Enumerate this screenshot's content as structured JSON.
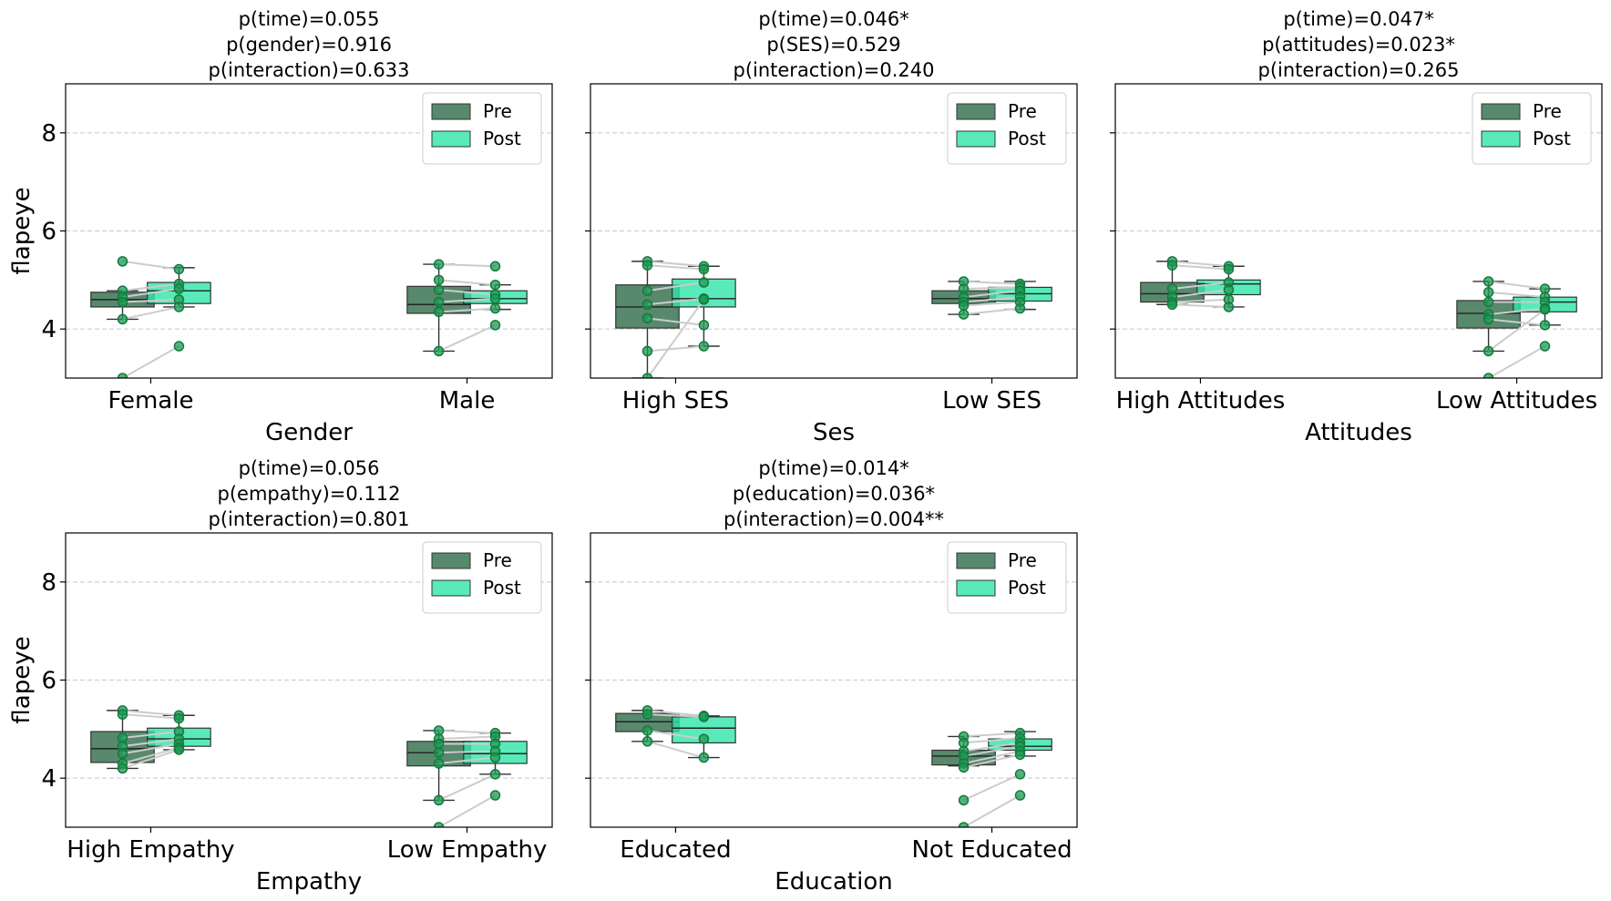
{
  "colors": {
    "pre": "#2e6b48",
    "post": "#2ee6a8",
    "points": "#1a9a52",
    "pair_lines": "#cccccc",
    "grid": "#c8c8c8"
  },
  "chart_data": [
    {
      "type": "box",
      "title_lines": [
        "p(time)=0.055",
        "p(gender)=0.916",
        "p(interaction)=0.633"
      ],
      "xlabel": "Gender",
      "ylabel": "flapeye",
      "ylim": [
        3,
        9
      ],
      "yticks": [
        4,
        6,
        8
      ],
      "grid": true,
      "legend": {
        "position": "top-right",
        "entries": [
          "Pre",
          "Post"
        ]
      },
      "categories": [
        "Female",
        "Male"
      ],
      "series": [
        {
          "name": "Pre",
          "boxes": [
            {
              "whisker_low": 4.2,
              "q1": 4.45,
              "median": 4.6,
              "q3": 4.75,
              "whisker_high": 4.78
            },
            {
              "whisker_low": 3.55,
              "q1": 4.32,
              "median": 4.5,
              "q3": 4.87,
              "whisker_high": 5.32
            }
          ]
        },
        {
          "name": "Post",
          "boxes": [
            {
              "whisker_low": 4.45,
              "q1": 4.52,
              "median": 4.78,
              "q3": 4.95,
              "whisker_high": 5.25
            },
            {
              "whisker_low": 4.4,
              "q1": 4.52,
              "median": 4.62,
              "q3": 4.78,
              "whisker_high": 4.9
            }
          ]
        }
      ],
      "pairs": [
        {
          "category": 0,
          "pre": 5.38,
          "post": 5.22
        },
        {
          "category": 0,
          "pre": 4.78,
          "post": 4.92
        },
        {
          "category": 0,
          "pre": 4.65,
          "post": 4.82
        },
        {
          "category": 0,
          "pre": 4.55,
          "post": 4.6
        },
        {
          "category": 0,
          "pre": 4.2,
          "post": 4.45
        },
        {
          "category": 0,
          "pre": 3.0,
          "post": 3.65
        },
        {
          "category": 1,
          "pre": 5.32,
          "post": 5.28
        },
        {
          "category": 1,
          "pre": 5.0,
          "post": 4.9
        },
        {
          "category": 1,
          "pre": 4.8,
          "post": 4.7
        },
        {
          "category": 1,
          "pre": 4.55,
          "post": 4.62
        },
        {
          "category": 1,
          "pre": 4.35,
          "post": 4.42
        },
        {
          "category": 1,
          "pre": 3.55,
          "post": 4.08
        }
      ]
    },
    {
      "type": "box",
      "title_lines": [
        "p(time)=0.046*",
        "p(SES)=0.529",
        "p(interaction)=0.240"
      ],
      "xlabel": "Ses",
      "ylabel": "",
      "ylim": [
        3,
        9
      ],
      "yticks": [
        4,
        6,
        8
      ],
      "grid": true,
      "legend": {
        "position": "top-right",
        "entries": [
          "Pre",
          "Post"
        ]
      },
      "categories": [
        "High SES",
        "Low SES"
      ],
      "series": [
        {
          "name": "Pre",
          "boxes": [
            {
              "whisker_low": 3.0,
              "q1": 4.02,
              "median": 4.45,
              "q3": 4.9,
              "whisker_high": 5.38
            },
            {
              "whisker_low": 4.3,
              "q1": 4.52,
              "median": 4.62,
              "q3": 4.78,
              "whisker_high": 4.97
            }
          ]
        },
        {
          "name": "Post",
          "boxes": [
            {
              "whisker_low": 3.65,
              "q1": 4.45,
              "median": 4.62,
              "q3": 5.02,
              "whisker_high": 5.28
            },
            {
              "whisker_low": 4.4,
              "q1": 4.57,
              "median": 4.72,
              "q3": 4.85,
              "whisker_high": 4.97
            }
          ]
        }
      ],
      "pairs": [
        {
          "category": 0,
          "pre": 5.38,
          "post": 5.28
        },
        {
          "category": 0,
          "pre": 5.3,
          "post": 5.22
        },
        {
          "category": 0,
          "pre": 4.78,
          "post": 4.95
        },
        {
          "category": 0,
          "pre": 4.5,
          "post": 4.62
        },
        {
          "category": 0,
          "pre": 4.22,
          "post": 4.08
        },
        {
          "category": 0,
          "pre": 3.55,
          "post": 3.65
        },
        {
          "category": 0,
          "pre": 3.0,
          "post": 4.6
        },
        {
          "category": 1,
          "pre": 4.97,
          "post": 4.92
        },
        {
          "category": 1,
          "pre": 4.82,
          "post": 4.85
        },
        {
          "category": 1,
          "pre": 4.65,
          "post": 4.78
        },
        {
          "category": 1,
          "pre": 4.55,
          "post": 4.65
        },
        {
          "category": 1,
          "pre": 4.48,
          "post": 4.55
        },
        {
          "category": 1,
          "pre": 4.3,
          "post": 4.42
        }
      ]
    },
    {
      "type": "box",
      "title_lines": [
        "p(time)=0.047*",
        "p(attitudes)=0.023*",
        "p(interaction)=0.265"
      ],
      "xlabel": "Attitudes",
      "ylabel": "",
      "ylim": [
        3,
        9
      ],
      "yticks": [
        4,
        6,
        8
      ],
      "grid": true,
      "legend": {
        "position": "top-right",
        "entries": [
          "Pre",
          "Post"
        ]
      },
      "categories": [
        "High Attitudes",
        "Low Attitudes"
      ],
      "series": [
        {
          "name": "Pre",
          "boxes": [
            {
              "whisker_low": 4.5,
              "q1": 4.55,
              "median": 4.72,
              "q3": 4.95,
              "whisker_high": 5.38
            },
            {
              "whisker_low": 3.55,
              "q1": 4.02,
              "median": 4.32,
              "q3": 4.58,
              "whisker_high": 4.97
            }
          ]
        },
        {
          "name": "Post",
          "boxes": [
            {
              "whisker_low": 4.45,
              "q1": 4.7,
              "median": 4.92,
              "q3": 5.0,
              "whisker_high": 5.28
            },
            {
              "whisker_low": 4.08,
              "q1": 4.35,
              "median": 4.55,
              "q3": 4.65,
              "whisker_high": 4.82
            }
          ]
        }
      ],
      "pairs": [
        {
          "category": 0,
          "pre": 5.38,
          "post": 5.28
        },
        {
          "category": 0,
          "pre": 5.3,
          "post": 5.22
        },
        {
          "category": 0,
          "pre": 4.82,
          "post": 4.95
        },
        {
          "category": 0,
          "pre": 4.65,
          "post": 4.8
        },
        {
          "category": 0,
          "pre": 4.55,
          "post": 4.6
        },
        {
          "category": 0,
          "pre": 4.5,
          "post": 4.45
        },
        {
          "category": 1,
          "pre": 4.97,
          "post": 4.82
        },
        {
          "category": 1,
          "pre": 4.75,
          "post": 4.65
        },
        {
          "category": 1,
          "pre": 4.55,
          "post": 4.55
        },
        {
          "category": 1,
          "pre": 4.3,
          "post": 4.42
        },
        {
          "category": 1,
          "pre": 4.2,
          "post": 4.08
        },
        {
          "category": 1,
          "pre": 3.55,
          "post": 4.4
        },
        {
          "category": 1,
          "pre": 3.0,
          "post": 3.65
        }
      ]
    },
    {
      "type": "box",
      "title_lines": [
        "p(time)=0.056",
        "p(empathy)=0.112",
        "p(interaction)=0.801"
      ],
      "xlabel": "Empathy",
      "ylabel": "flapeye",
      "ylim": [
        3,
        9
      ],
      "yticks": [
        4,
        6,
        8
      ],
      "grid": true,
      "legend": {
        "position": "top-right",
        "entries": [
          "Pre",
          "Post"
        ]
      },
      "categories": [
        "High Empathy",
        "Low Empathy"
      ],
      "series": [
        {
          "name": "Pre",
          "boxes": [
            {
              "whisker_low": 4.2,
              "q1": 4.32,
              "median": 4.6,
              "q3": 4.95,
              "whisker_high": 5.38
            },
            {
              "whisker_low": 3.55,
              "q1": 4.25,
              "median": 4.52,
              "q3": 4.75,
              "whisker_high": 4.97
            }
          ]
        },
        {
          "name": "Post",
          "boxes": [
            {
              "whisker_low": 4.58,
              "q1": 4.65,
              "median": 4.8,
              "q3": 5.02,
              "whisker_high": 5.28
            },
            {
              "whisker_low": 4.08,
              "q1": 4.3,
              "median": 4.5,
              "q3": 4.75,
              "whisker_high": 4.92
            }
          ]
        }
      ],
      "pairs": [
        {
          "category": 0,
          "pre": 5.38,
          "post": 5.28
        },
        {
          "category": 0,
          "pre": 5.3,
          "post": 5.22
        },
        {
          "category": 0,
          "pre": 4.82,
          "post": 4.95
        },
        {
          "category": 0,
          "pre": 4.65,
          "post": 4.8
        },
        {
          "category": 0,
          "pre": 4.5,
          "post": 4.7
        },
        {
          "category": 0,
          "pre": 4.3,
          "post": 4.62
        },
        {
          "category": 0,
          "pre": 4.2,
          "post": 4.58
        },
        {
          "category": 1,
          "pre": 4.97,
          "post": 4.92
        },
        {
          "category": 1,
          "pre": 4.8,
          "post": 4.85
        },
        {
          "category": 1,
          "pre": 4.7,
          "post": 4.7
        },
        {
          "category": 1,
          "pre": 4.52,
          "post": 4.55
        },
        {
          "category": 1,
          "pre": 4.3,
          "post": 4.42
        },
        {
          "category": 1,
          "pre": 3.55,
          "post": 4.08
        },
        {
          "category": 1,
          "pre": 3.0,
          "post": 3.65
        }
      ]
    },
    {
      "type": "box",
      "title_lines": [
        "p(time)=0.014*",
        "p(education)=0.036*",
        "p(interaction)=0.004**"
      ],
      "xlabel": "Education",
      "ylabel": "",
      "ylim": [
        3,
        9
      ],
      "yticks": [
        4,
        6,
        8
      ],
      "grid": true,
      "legend": {
        "position": "top-right",
        "entries": [
          "Pre",
          "Post"
        ]
      },
      "categories": [
        "Educated",
        "Not Educated"
      ],
      "series": [
        {
          "name": "Pre",
          "boxes": [
            {
              "whisker_low": 4.75,
              "q1": 4.95,
              "median": 5.15,
              "q3": 5.32,
              "whisker_high": 5.38
            },
            {
              "whisker_low": 4.25,
              "q1": 4.27,
              "median": 4.45,
              "q3": 4.57,
              "whisker_high": 4.85
            }
          ]
        },
        {
          "name": "Post",
          "boxes": [
            {
              "whisker_low": 4.42,
              "q1": 4.72,
              "median": 5.02,
              "q3": 5.25,
              "whisker_high": 5.27
            },
            {
              "whisker_low": 4.45,
              "q1": 4.57,
              "median": 4.65,
              "q3": 4.8,
              "whisker_high": 4.95
            }
          ]
        }
      ],
      "pairs": [
        {
          "category": 0,
          "pre": 5.38,
          "post": 5.27
        },
        {
          "category": 0,
          "pre": 5.3,
          "post": 5.25
        },
        {
          "category": 0,
          "pre": 4.97,
          "post": 4.8
        },
        {
          "category": 0,
          "pre": 4.75,
          "post": 4.42
        },
        {
          "category": 1,
          "pre": 4.85,
          "post": 4.92
        },
        {
          "category": 1,
          "pre": 4.72,
          "post": 4.82
        },
        {
          "category": 1,
          "pre": 4.55,
          "post": 4.72
        },
        {
          "category": 1,
          "pre": 4.45,
          "post": 4.65
        },
        {
          "category": 1,
          "pre": 4.3,
          "post": 4.55
        },
        {
          "category": 1,
          "pre": 4.22,
          "post": 4.48
        },
        {
          "category": 1,
          "pre": 3.55,
          "post": 4.08
        },
        {
          "category": 1,
          "pre": 3.0,
          "post": 3.65
        }
      ]
    }
  ]
}
